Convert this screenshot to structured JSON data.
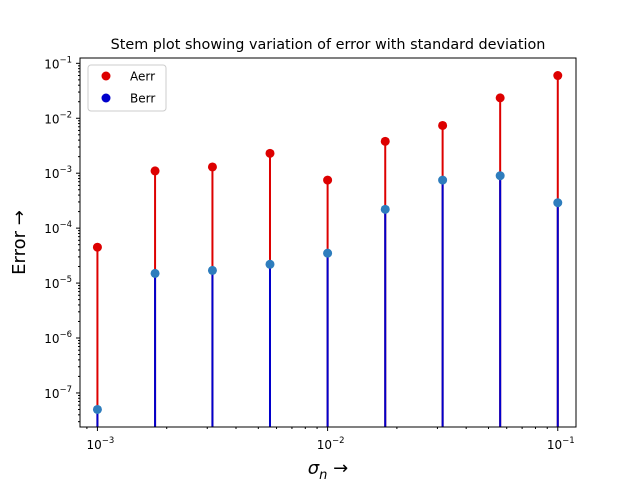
{
  "chart_data": {
    "type": "stem",
    "title": "Stem plot showing variation of error with standard deviation",
    "xlabel": "σ_n →",
    "ylabel": "Error →",
    "xscale": "log",
    "yscale": "log",
    "xlim": [
      0.00084,
      0.12
    ],
    "ylim": [
      2.4e-08,
      0.125
    ],
    "x": [
      0.001,
      0.00178,
      0.00316,
      0.00562,
      0.01,
      0.0178,
      0.0316,
      0.0562,
      0.1
    ],
    "series": [
      {
        "name": "Aerr",
        "values": [
          4.5e-05,
          0.0011,
          0.0013,
          0.0023,
          0.00075,
          0.0038,
          0.0074,
          0.0235,
          0.06
        ],
        "stem_color": "#dd0000",
        "marker_color": "#dd0000"
      },
      {
        "name": "Berr",
        "values": [
          5e-08,
          1.5e-05,
          1.7e-05,
          2.2e-05,
          3.5e-05,
          0.00022,
          0.00075,
          0.0009,
          0.00029
        ],
        "stem_color": "#0000cc",
        "marker_color": "#2e7dbd"
      }
    ],
    "x_ticks": [
      {
        "value": 0.001,
        "base": "10",
        "exp": "−3"
      },
      {
        "value": 0.01,
        "base": "10",
        "exp": "−2"
      },
      {
        "value": 0.1,
        "base": "10",
        "exp": "−1"
      }
    ],
    "y_ticks": [
      {
        "value": 1e-07,
        "base": "10",
        "exp": "−7"
      },
      {
        "value": 1e-06,
        "base": "10",
        "exp": "−6"
      },
      {
        "value": 1e-05,
        "base": "10",
        "exp": "−5"
      },
      {
        "value": 0.0001,
        "base": "10",
        "exp": "−4"
      },
      {
        "value": 0.001,
        "base": "10",
        "exp": "−3"
      },
      {
        "value": 0.01,
        "base": "10",
        "exp": "−2"
      },
      {
        "value": 0.1,
        "base": "10",
        "exp": "−1"
      }
    ],
    "legend": {
      "position": "upper-left",
      "entries": [
        {
          "label": "Aerr",
          "color": "#dd0000"
        },
        {
          "label": "Berr",
          "color": "#0000cc"
        }
      ]
    },
    "grid": false
  }
}
